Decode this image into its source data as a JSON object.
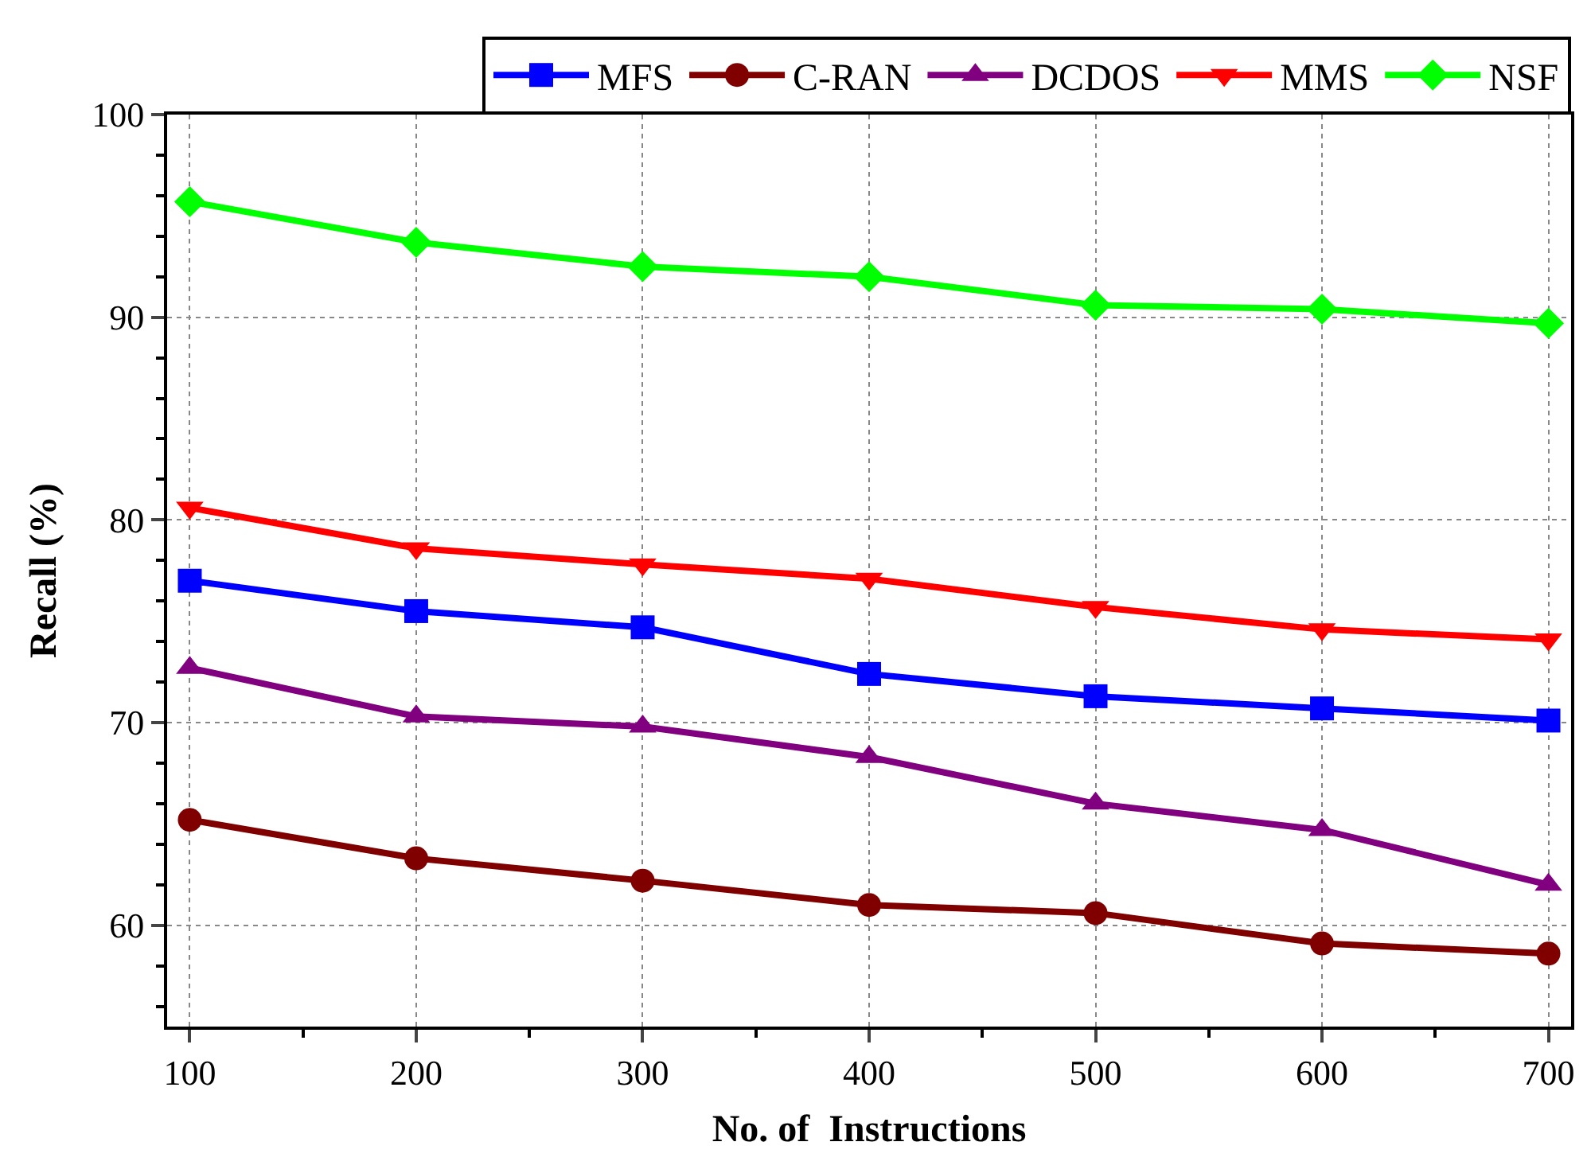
{
  "chart_data": {
    "type": "line",
    "xlabel": "No. of  Instructions",
    "ylabel": "Recall (%)",
    "x": [
      100,
      200,
      300,
      400,
      500,
      600,
      700
    ],
    "series": [
      {
        "name": "MFS",
        "color": "#0000ff",
        "marker": "square",
        "values": [
          77.0,
          75.5,
          74.7,
          72.4,
          71.3,
          70.7,
          70.1
        ]
      },
      {
        "name": "C-RAN",
        "color": "#800000",
        "marker": "circle",
        "values": [
          65.2,
          63.3,
          62.2,
          61.0,
          60.6,
          59.1,
          58.6
        ]
      },
      {
        "name": "DCDOS",
        "color": "#800080",
        "marker": "triangle",
        "values": [
          72.7,
          70.3,
          69.8,
          68.3,
          66.0,
          64.7,
          62.0
        ]
      },
      {
        "name": "MMS",
        "color": "#ff0000",
        "marker": "triangle-down",
        "values": [
          80.6,
          78.6,
          77.8,
          77.1,
          75.7,
          74.6,
          74.1
        ]
      },
      {
        "name": "NSF",
        "color": "#00ff00",
        "marker": "diamond",
        "values": [
          95.7,
          93.7,
          92.5,
          92.0,
          90.6,
          90.4,
          89.7
        ]
      }
    ],
    "xlim": [
      90,
      710
    ],
    "xticks": [
      100,
      200,
      300,
      400,
      500,
      600,
      700
    ],
    "ylim": [
      55,
      100
    ],
    "yticks": [
      60,
      70,
      80,
      90,
      100
    ],
    "grid": true,
    "legend": "top",
    "line_style": "solid"
  }
}
